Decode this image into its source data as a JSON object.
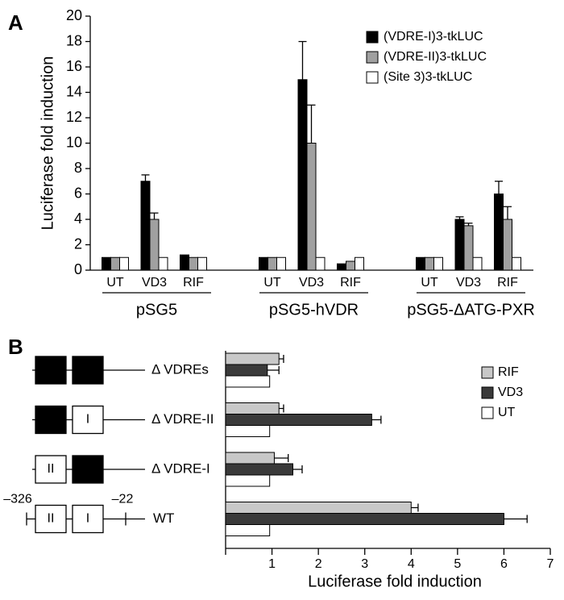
{
  "chart_data": [
    {
      "type": "bar",
      "panel": "A",
      "ylabel": "Luciferase fold induction",
      "categories": [
        "UT",
        "VD3",
        "RIF",
        "UT",
        "VD3",
        "RIF",
        "UT",
        "VD3",
        "RIF"
      ],
      "groups": [
        "pSG5",
        "pSG5-hVDR",
        "pSG5-ΔATG-PXR"
      ],
      "series": [
        {
          "name": "(VDRE-I)3-tkLUC",
          "color": "#000000",
          "values": [
            1,
            7,
            1.2,
            1,
            15,
            0.5,
            1,
            4,
            6
          ],
          "errors": [
            null,
            0.5,
            null,
            null,
            3,
            null,
            null,
            0.2,
            1
          ]
        },
        {
          "name": "(VDRE-II)3-tkLUC",
          "color": "#a0a0a0",
          "values": [
            1,
            4,
            1,
            1,
            10,
            0.7,
            1,
            3.5,
            4
          ],
          "errors": [
            null,
            0.5,
            null,
            null,
            3,
            null,
            null,
            0.2,
            1
          ]
        },
        {
          "name": "(Site 3)3-tkLUC",
          "color": "#ffffff",
          "values": [
            1,
            1,
            1,
            1,
            1,
            1,
            1,
            1,
            1
          ]
        }
      ],
      "ylim": [
        0,
        20
      ],
      "yticks": [
        0,
        2,
        4,
        6,
        8,
        10,
        12,
        14,
        16,
        18,
        20
      ],
      "legend": "upper right"
    },
    {
      "type": "hbar",
      "panel": "B",
      "xlabel": "Luciferase fold induction",
      "categories": [
        "Δ VDREs",
        "Δ VDRE-II",
        "Δ VDRE-I",
        "WT"
      ],
      "constructs": [
        [
          null,
          null
        ],
        [
          null,
          "I"
        ],
        [
          "II",
          null
        ],
        [
          "II",
          "I"
        ]
      ],
      "wt_ends": [
        "–326",
        "–22"
      ],
      "series": [
        {
          "name": "RIF",
          "color": "#c8c8c8",
          "values": [
            1.15,
            1.15,
            1.05,
            4.0
          ],
          "errors": [
            0.1,
            0.1,
            0.3,
            0.15
          ]
        },
        {
          "name": "VD3",
          "color": "#3a3a3a",
          "values": [
            0.9,
            3.15,
            1.45,
            6.0
          ],
          "errors": [
            0.25,
            0.2,
            0.2,
            0.5
          ]
        },
        {
          "name": "UT",
          "color": "#ffffff",
          "values": [
            0.95,
            0.95,
            0.95,
            0.95
          ]
        }
      ],
      "xlim": [
        0,
        7
      ],
      "xticks": [
        1,
        2,
        3,
        4,
        5,
        6,
        7
      ],
      "legend": "upper right"
    }
  ]
}
